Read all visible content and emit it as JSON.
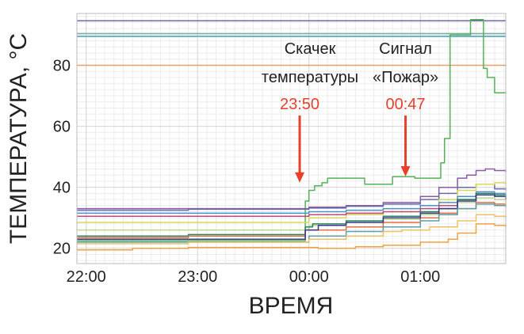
{
  "chart_data": {
    "type": "line",
    "xlabel": "ВРЕМЯ",
    "ylabel": "ТЕМПЕРАТУРА, °С",
    "x_ticks": [
      "22:00",
      "23:00",
      "00:00",
      "01:00"
    ],
    "x_tick_values": [
      0,
      60,
      120,
      180
    ],
    "y_ticks": [
      20,
      40,
      60,
      80
    ],
    "xlim": [
      -5,
      226
    ],
    "ylim": [
      15,
      97
    ],
    "grid": true,
    "reference_lines": [
      {
        "y": 94.6,
        "color": "#6a6aa8"
      },
      {
        "y": 90.4,
        "color": "#7ab0a0"
      },
      {
        "y": 89.5,
        "color": "#4aa6b8"
      },
      {
        "y": 80,
        "color": "#e8a060"
      }
    ],
    "annotations": [
      {
        "text_lines": [
          "Скачек",
          "температуры"
        ],
        "time": "23:50",
        "x": 115,
        "y": 40.5
      },
      {
        "text_lines": [
          "Сигнал",
          "«Пожар»"
        ],
        "time": "00:47",
        "x": 172,
        "y": 42.5
      }
    ],
    "annotation_color": "#e8402a",
    "series": [
      {
        "color": "#55b05a",
        "x": [
          -5,
          115,
          118,
          120,
          123,
          127,
          130,
          148,
          150,
          163,
          165,
          175,
          177,
          188,
          191,
          193,
          196,
          204,
          207,
          209,
          214,
          216,
          220,
          226
        ],
        "y": [
          22.5,
          22.5,
          35.5,
          39,
          40.5,
          41.5,
          43,
          43,
          41,
          41,
          43.5,
          43.5,
          43,
          43,
          48,
          56,
          90,
          90,
          95,
          95,
          79,
          76,
          71,
          71
        ]
      },
      {
        "color": "#8a5aa8",
        "x": [
          -5,
          115,
          120,
          140,
          160,
          180,
          190,
          200,
          205,
          210,
          215,
          220,
          226
        ],
        "y": [
          33,
          33,
          33.5,
          34,
          35,
          37,
          40,
          43,
          44,
          45.5,
          46,
          45.5,
          45
        ]
      },
      {
        "color": "#6a6aa8",
        "x": [
          -5,
          50,
          55,
          115,
          120,
          140,
          160,
          180,
          190,
          200,
          210,
          220,
          226
        ],
        "y": [
          32.5,
          32.5,
          32.8,
          32.8,
          33.2,
          33.8,
          34.5,
          36,
          38,
          40,
          41,
          39.5,
          39
        ]
      },
      {
        "color": "#d8d858",
        "x": [
          -5,
          115,
          120,
          140,
          160,
          180,
          190,
          200,
          210,
          220,
          226
        ],
        "y": [
          28.5,
          28.5,
          30,
          31,
          32,
          34,
          36,
          39,
          41,
          41.5,
          41
        ]
      },
      {
        "color": "#4a90c8",
        "x": [
          -5,
          115,
          120,
          140,
          160,
          180,
          190,
          200,
          210,
          220,
          226
        ],
        "y": [
          31.5,
          31.5,
          32,
          32.5,
          33,
          34,
          35,
          37,
          38.5,
          38,
          37.5
        ]
      },
      {
        "color": "#c04878",
        "x": [
          -5,
          115,
          120,
          140,
          160,
          180,
          190,
          200,
          210,
          220,
          226
        ],
        "y": [
          30.5,
          30.5,
          31,
          31.5,
          32,
          33,
          34,
          36,
          37.5,
          37,
          36.5
        ]
      },
      {
        "color": "#b8d890",
        "x": [
          -5,
          115,
          120,
          140,
          160,
          180,
          190,
          200,
          210,
          220,
          226
        ],
        "y": [
          26,
          26,
          27.5,
          28.5,
          29.5,
          31,
          33,
          35,
          36.5,
          36,
          35
        ]
      },
      {
        "color": "#2a8060",
        "x": [
          -5,
          50,
          55,
          115,
          118,
          122,
          140,
          160,
          180,
          190,
          200,
          210,
          220,
          226
        ],
        "y": [
          24,
          24,
          24.5,
          24.5,
          27,
          28,
          29,
          30.5,
          32,
          33,
          36,
          38,
          37.5,
          37
        ]
      },
      {
        "color": "#e86a40",
        "x": [
          -5,
          50,
          55,
          115,
          118,
          140,
          160,
          180,
          190,
          200,
          210,
          220,
          226
        ],
        "y": [
          23.5,
          23.5,
          24,
          24,
          26,
          27,
          28.5,
          30,
          31.5,
          33,
          35,
          34.5,
          34
        ]
      },
      {
        "color": "#3a3a88",
        "x": [
          -5,
          115,
          118,
          125,
          140,
          160,
          180,
          190,
          200,
          210,
          220,
          226
        ],
        "y": [
          23,
          23,
          26,
          27.5,
          28.5,
          30,
          31.5,
          33,
          35.5,
          37.5,
          37,
          36
        ]
      },
      {
        "color": "#58a0a8",
        "x": [
          -5,
          115,
          120,
          140,
          160,
          180,
          190,
          200,
          210,
          220,
          226
        ],
        "y": [
          22,
          22,
          24,
          25.5,
          27,
          29,
          31,
          33,
          34.5,
          34,
          33.5
        ]
      },
      {
        "color": "#f0c060",
        "x": [
          -5,
          50,
          55,
          115,
          120,
          140,
          160,
          170,
          175,
          185,
          200,
          210,
          220,
          226
        ],
        "y": [
          21.5,
          21.5,
          22,
          22,
          23,
          24,
          25.5,
          26,
          26,
          27,
          29,
          31,
          30.5,
          30
        ]
      },
      {
        "color": "#f0a040",
        "x": [
          -5,
          20,
          25,
          50,
          55,
          120,
          125,
          140,
          145,
          160,
          180,
          195,
          200,
          210,
          220,
          226
        ],
        "y": [
          19.5,
          19.5,
          20,
          20,
          20.3,
          20.3,
          20,
          20,
          20.5,
          21,
          22,
          23,
          25,
          28,
          27.5,
          27
        ]
      }
    ]
  }
}
